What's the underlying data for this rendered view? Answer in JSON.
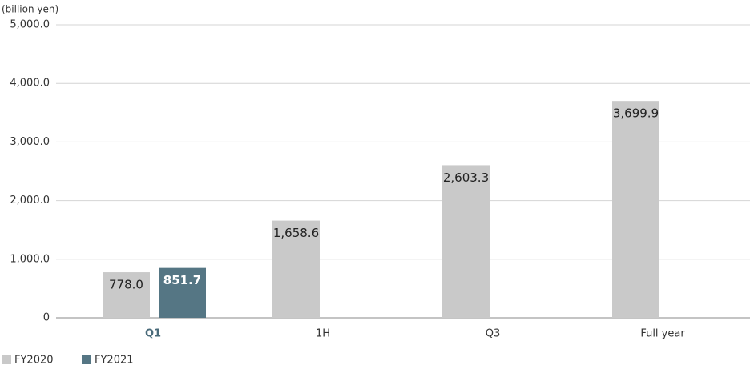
{
  "chart_data": {
    "type": "bar",
    "y_label": "(billion yen)",
    "categories": [
      "Q1",
      "1H",
      "Q3",
      "Full year"
    ],
    "series": [
      {
        "name": "FY2020",
        "color": "#c9c9c9",
        "values": [
          778.0,
          1658.6,
          2603.3,
          3699.9
        ],
        "value_labels": [
          "778.0",
          "1,658.6",
          "2,603.3",
          "3,699.9"
        ]
      },
      {
        "name": "FY2021",
        "color": "#557684",
        "values": [
          851.7,
          null,
          null,
          null
        ],
        "value_labels": [
          "851.7",
          null,
          null,
          null
        ]
      }
    ],
    "ylim": [
      0,
      5000
    ],
    "yticks": [
      0,
      {
        "value": 1000,
        "label": "1,000.0"
      },
      {
        "value": 2000,
        "label": "2,000.0"
      },
      {
        "value": 3000,
        "label": "3,000.0"
      },
      {
        "value": 4000,
        "label": "4,000.0"
      },
      {
        "value": 5000,
        "label": "5,000.0"
      }
    ],
    "grid": true
  }
}
